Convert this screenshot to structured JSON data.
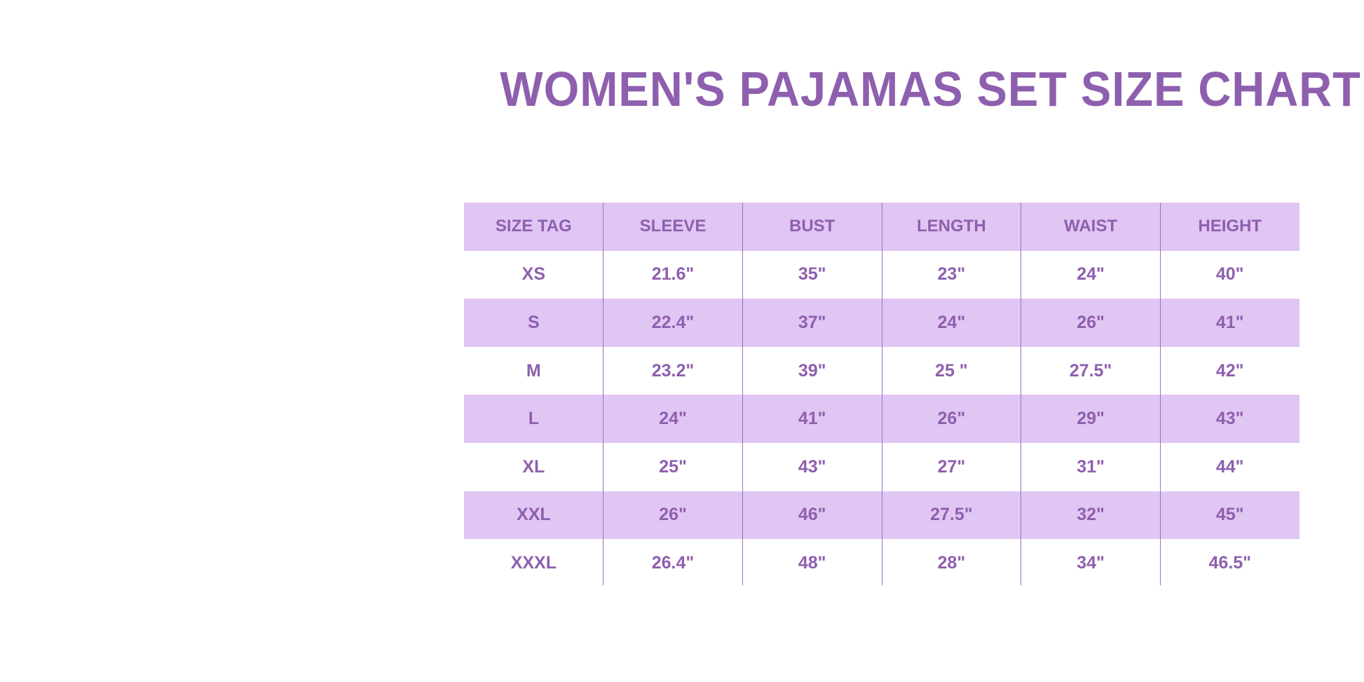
{
  "title": "WOMEN'S PAJAMAS SET SIZE CHART",
  "colors": {
    "accent": "#8e5fae",
    "band": "#e0c6f3"
  },
  "table": {
    "headers": [
      "SIZE TAG",
      "SLEEVE",
      "BUST",
      "LENGTH",
      "WAIST",
      "HEIGHT"
    ],
    "rows": [
      [
        "XS",
        "21.6\"",
        "35\"",
        "23\"",
        "24\"",
        "40\""
      ],
      [
        "S",
        "22.4\"",
        "37\"",
        "24\"",
        "26\"",
        "41\""
      ],
      [
        "M",
        "23.2\"",
        "39\"",
        "25 \"",
        "27.5\"",
        "42\""
      ],
      [
        "L",
        "24\"",
        "41\"",
        "26\"",
        "29\"",
        "43\""
      ],
      [
        "XL",
        "25\"",
        "43\"",
        "27\"",
        "31\"",
        "44\""
      ],
      [
        "XXL",
        "26\"",
        "46\"",
        "27.5\"",
        "32\"",
        "45\""
      ],
      [
        "XXXL",
        "26.4\"",
        "48\"",
        "28\"",
        "34\"",
        "46.5\""
      ]
    ]
  }
}
